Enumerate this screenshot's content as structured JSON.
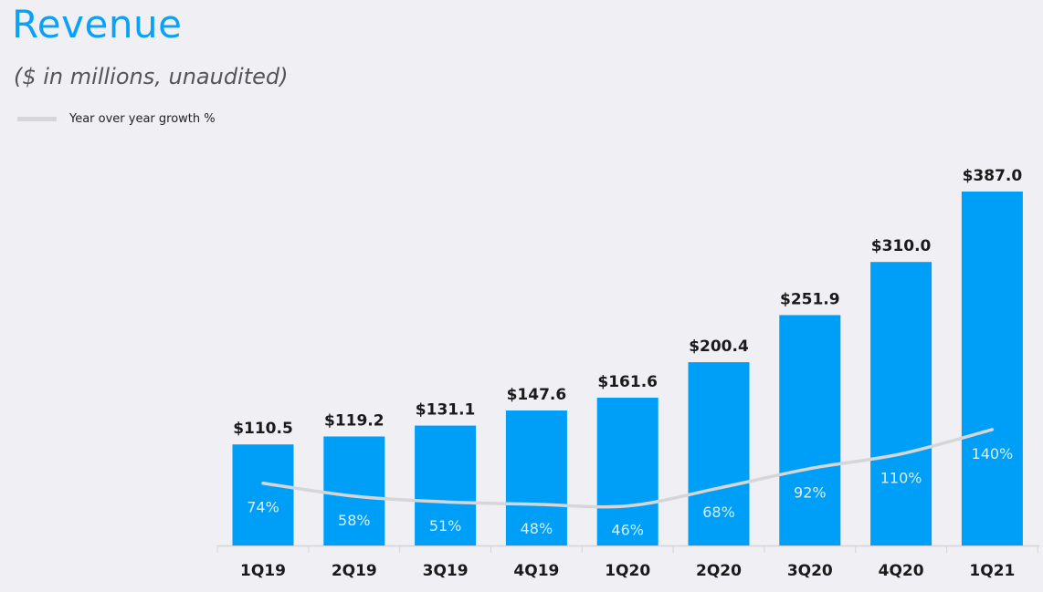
{
  "chart_data": {
    "type": "bar",
    "title": "Revenue",
    "subtitle": "($ in millions,  unaudited)",
    "xlabel": "",
    "ylabel": "",
    "categories": [
      "1Q19",
      "2Q19",
      "3Q19",
      "4Q19",
      "1Q20",
      "2Q20",
      "3Q20",
      "4Q20",
      "1Q21"
    ],
    "series": [
      {
        "name": "Revenue",
        "type": "bar",
        "values": [
          110.5,
          119.2,
          131.1,
          147.6,
          161.6,
          200.4,
          251.9,
          310.0,
          387.0
        ],
        "labels": [
          "$110.5",
          "$119.2",
          "$131.1",
          "$147.6",
          "$161.6",
          "$200.4",
          "$251.9",
          "$310.0",
          "$387.0"
        ],
        "color": "#009ff7"
      },
      {
        "name": "Year over year growth %",
        "type": "line",
        "values": [
          74,
          58,
          51,
          48,
          46,
          68,
          92,
          110,
          140
        ],
        "labels": [
          "74%",
          "58%",
          "51%",
          "48%",
          "46%",
          "68%",
          "92%",
          "110%",
          "140%"
        ],
        "color": "#d6d6d8"
      }
    ],
    "ylim": [
      0,
      387.0
    ],
    "grid": false,
    "legend": {
      "position": "top-left",
      "entries": [
        "Year over year growth %"
      ]
    }
  }
}
